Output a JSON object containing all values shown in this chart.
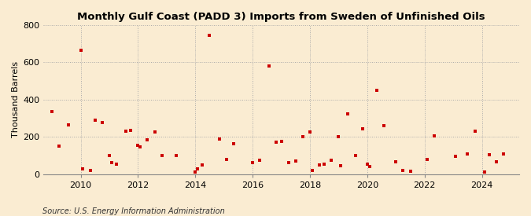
{
  "title": "Monthly Gulf Coast (PADD 3) Imports from Sweden of Unfinished Oils",
  "ylabel": "Thousand Barrels",
  "source": "Source: U.S. Energy Information Administration",
  "background_color": "#faecd2",
  "plot_bg_color": "#faecd2",
  "dot_color": "#cc0000",
  "ylim": [
    0,
    800
  ],
  "yticks": [
    0,
    200,
    400,
    600,
    800
  ],
  "data": [
    [
      2009.0,
      335
    ],
    [
      2009.25,
      150
    ],
    [
      2009.58,
      265
    ],
    [
      2010.0,
      665
    ],
    [
      2010.08,
      30
    ],
    [
      2010.33,
      20
    ],
    [
      2010.5,
      290
    ],
    [
      2010.75,
      275
    ],
    [
      2011.0,
      100
    ],
    [
      2011.08,
      60
    ],
    [
      2011.25,
      55
    ],
    [
      2011.58,
      230
    ],
    [
      2011.75,
      235
    ],
    [
      2012.0,
      155
    ],
    [
      2012.08,
      145
    ],
    [
      2012.33,
      185
    ],
    [
      2012.58,
      225
    ],
    [
      2012.83,
      100
    ],
    [
      2013.33,
      100
    ],
    [
      2014.0,
      10
    ],
    [
      2014.08,
      30
    ],
    [
      2014.25,
      50
    ],
    [
      2014.5,
      745
    ],
    [
      2014.83,
      190
    ],
    [
      2015.08,
      80
    ],
    [
      2015.33,
      165
    ],
    [
      2016.0,
      60
    ],
    [
      2016.25,
      75
    ],
    [
      2016.58,
      580
    ],
    [
      2016.83,
      170
    ],
    [
      2017.0,
      175
    ],
    [
      2017.25,
      60
    ],
    [
      2017.5,
      70
    ],
    [
      2017.75,
      200
    ],
    [
      2018.0,
      225
    ],
    [
      2018.08,
      20
    ],
    [
      2018.33,
      50
    ],
    [
      2018.5,
      55
    ],
    [
      2018.75,
      75
    ],
    [
      2019.0,
      200
    ],
    [
      2019.08,
      45
    ],
    [
      2019.33,
      325
    ],
    [
      2019.58,
      100
    ],
    [
      2019.83,
      245
    ],
    [
      2020.0,
      55
    ],
    [
      2020.08,
      40
    ],
    [
      2020.33,
      450
    ],
    [
      2020.58,
      260
    ],
    [
      2021.0,
      65
    ],
    [
      2021.25,
      20
    ],
    [
      2021.5,
      15
    ],
    [
      2022.08,
      80
    ],
    [
      2022.33,
      205
    ],
    [
      2023.08,
      95
    ],
    [
      2023.5,
      110
    ],
    [
      2023.75,
      230
    ],
    [
      2024.08,
      10
    ],
    [
      2024.25,
      105
    ],
    [
      2024.5,
      65
    ],
    [
      2024.75,
      110
    ]
  ],
  "xlim": [
    2008.7,
    2025.3
  ],
  "xticks": [
    2010,
    2012,
    2014,
    2016,
    2018,
    2020,
    2022,
    2024
  ],
  "title_fontsize": 9.5,
  "tick_fontsize": 8,
  "ylabel_fontsize": 8,
  "source_fontsize": 7
}
